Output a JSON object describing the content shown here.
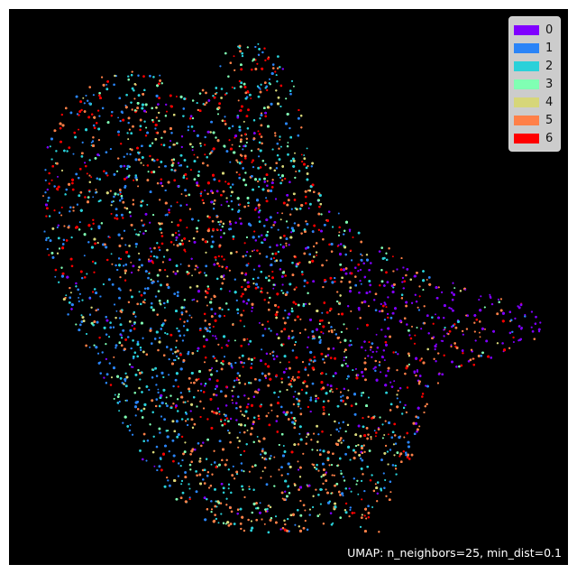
{
  "chart_data": {
    "type": "scatter",
    "title": "",
    "xlabel": "",
    "ylabel": "",
    "axes_visible": false,
    "background": "#000000",
    "legend_position": "top-right",
    "annotation": "UMAP: n_neighbors=25, min_dist=0.1",
    "series": [
      {
        "label": "0",
        "color": "#8000ff"
      },
      {
        "label": "1",
        "color": "#2a84f7"
      },
      {
        "label": "2",
        "color": "#2ad1d9"
      },
      {
        "label": "3",
        "color": "#80ffb3"
      },
      {
        "label": "4",
        "color": "#d6d679"
      },
      {
        "label": "5",
        "color": "#ff8048"
      },
      {
        "label": "6",
        "color": "#ff0000"
      }
    ]
  }
}
